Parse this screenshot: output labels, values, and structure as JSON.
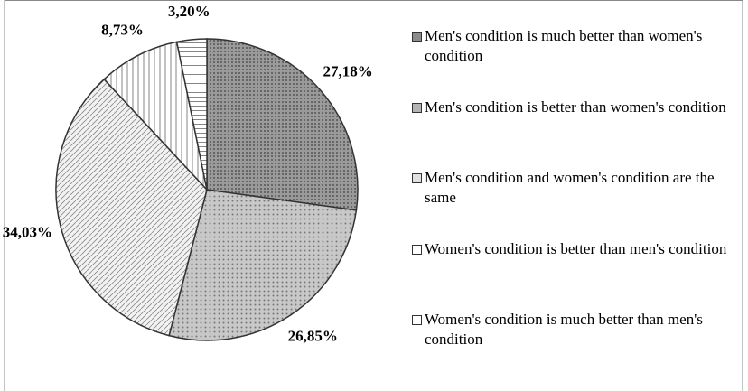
{
  "chart_data": {
    "type": "pie",
    "categories": [
      "Men's condition is much better than women's condition",
      "Men's condition is better than women's condition",
      "Men's condition and women's condition are the same",
      "Women's condition is better than men's condition",
      "Women's condition is much better than men's condition"
    ],
    "values": [
      27.18,
      26.85,
      34.03,
      8.73,
      3.2
    ],
    "value_labels": [
      "27,18%",
      "26,85%",
      "34,03%",
      "8,73%",
      "3,20%"
    ],
    "colors": [
      "#8c8c8c",
      "#b4b4b4",
      "#e0e0e0",
      "#ffffff",
      "#ffffff"
    ],
    "legend": "right"
  }
}
